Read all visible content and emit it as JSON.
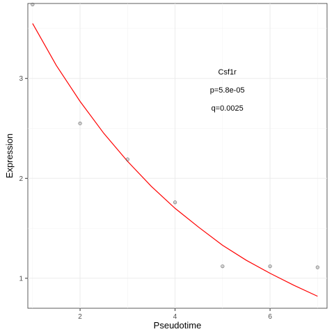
{
  "chart_data": {
    "type": "scatter",
    "title": "",
    "xlabel": "Pseudotime",
    "ylabel": "Expression",
    "xlim": [
      0.9,
      7.2
    ],
    "ylim": [
      0.7,
      3.75
    ],
    "x_ticks": [
      2,
      4,
      6
    ],
    "y_ticks": [
      1,
      2,
      3
    ],
    "grid": true,
    "legend": "none",
    "points": {
      "x": [
        1,
        2,
        3,
        4,
        5,
        6,
        7
      ],
      "y": [
        3.74,
        2.55,
        2.19,
        1.76,
        1.12,
        1.12,
        1.11
      ],
      "color": "#808080"
    },
    "fit_curve": {
      "type": "exponential",
      "color": "#ff0000",
      "x": [
        1.0,
        1.5,
        2.0,
        2.5,
        3.0,
        3.5,
        4.0,
        4.5,
        5.0,
        5.5,
        6.0,
        6.5,
        7.0
      ],
      "y": [
        3.55,
        3.13,
        2.77,
        2.45,
        2.17,
        1.92,
        1.7,
        1.51,
        1.33,
        1.18,
        1.05,
        0.93,
        0.82
      ]
    },
    "annotations": [
      "Csf1r",
      "p=5.8e-05",
      "q=0.0025"
    ]
  }
}
